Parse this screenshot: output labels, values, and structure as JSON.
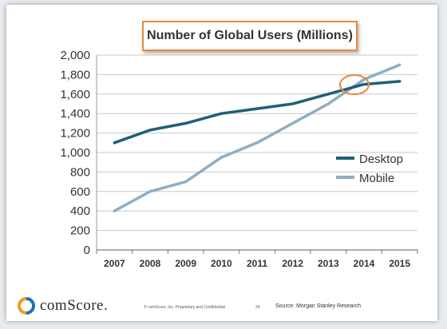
{
  "chart_data": {
    "type": "line",
    "title": "Number of Global Users (Millions)",
    "xlabel": "",
    "ylabel": "",
    "categories": [
      "2007",
      "2008",
      "2009",
      "2010",
      "2011",
      "2012",
      "2013",
      "2014",
      "2015"
    ],
    "y_ticks": [
      "0",
      "200",
      "400",
      "600",
      "800",
      "1,000",
      "1,200",
      "1,400",
      "1,600",
      "1,800",
      "2,000"
    ],
    "ylim": [
      0,
      2000
    ],
    "grid": true,
    "legend_position": "right",
    "series": [
      {
        "name": "Desktop",
        "color": "#1f5f7a",
        "values": [
          1100,
          1230,
          1300,
          1400,
          1450,
          1500,
          1600,
          1700,
          1730
        ]
      },
      {
        "name": "Mobile",
        "color": "#8eaec4",
        "values": [
          400,
          600,
          700,
          950,
          1100,
          1300,
          1500,
          1750,
          1900
        ]
      }
    ],
    "annotation": {
      "shape": "ellipse",
      "color": "#e8883a",
      "near_x": "2014",
      "near_y": 1680
    }
  },
  "footer": {
    "logo_text": "comScore.",
    "fine_print": "© comScore, Inc.  Proprietary and Confidential.",
    "page_number": "24",
    "source": "Source: Morgan Stanley Research"
  }
}
